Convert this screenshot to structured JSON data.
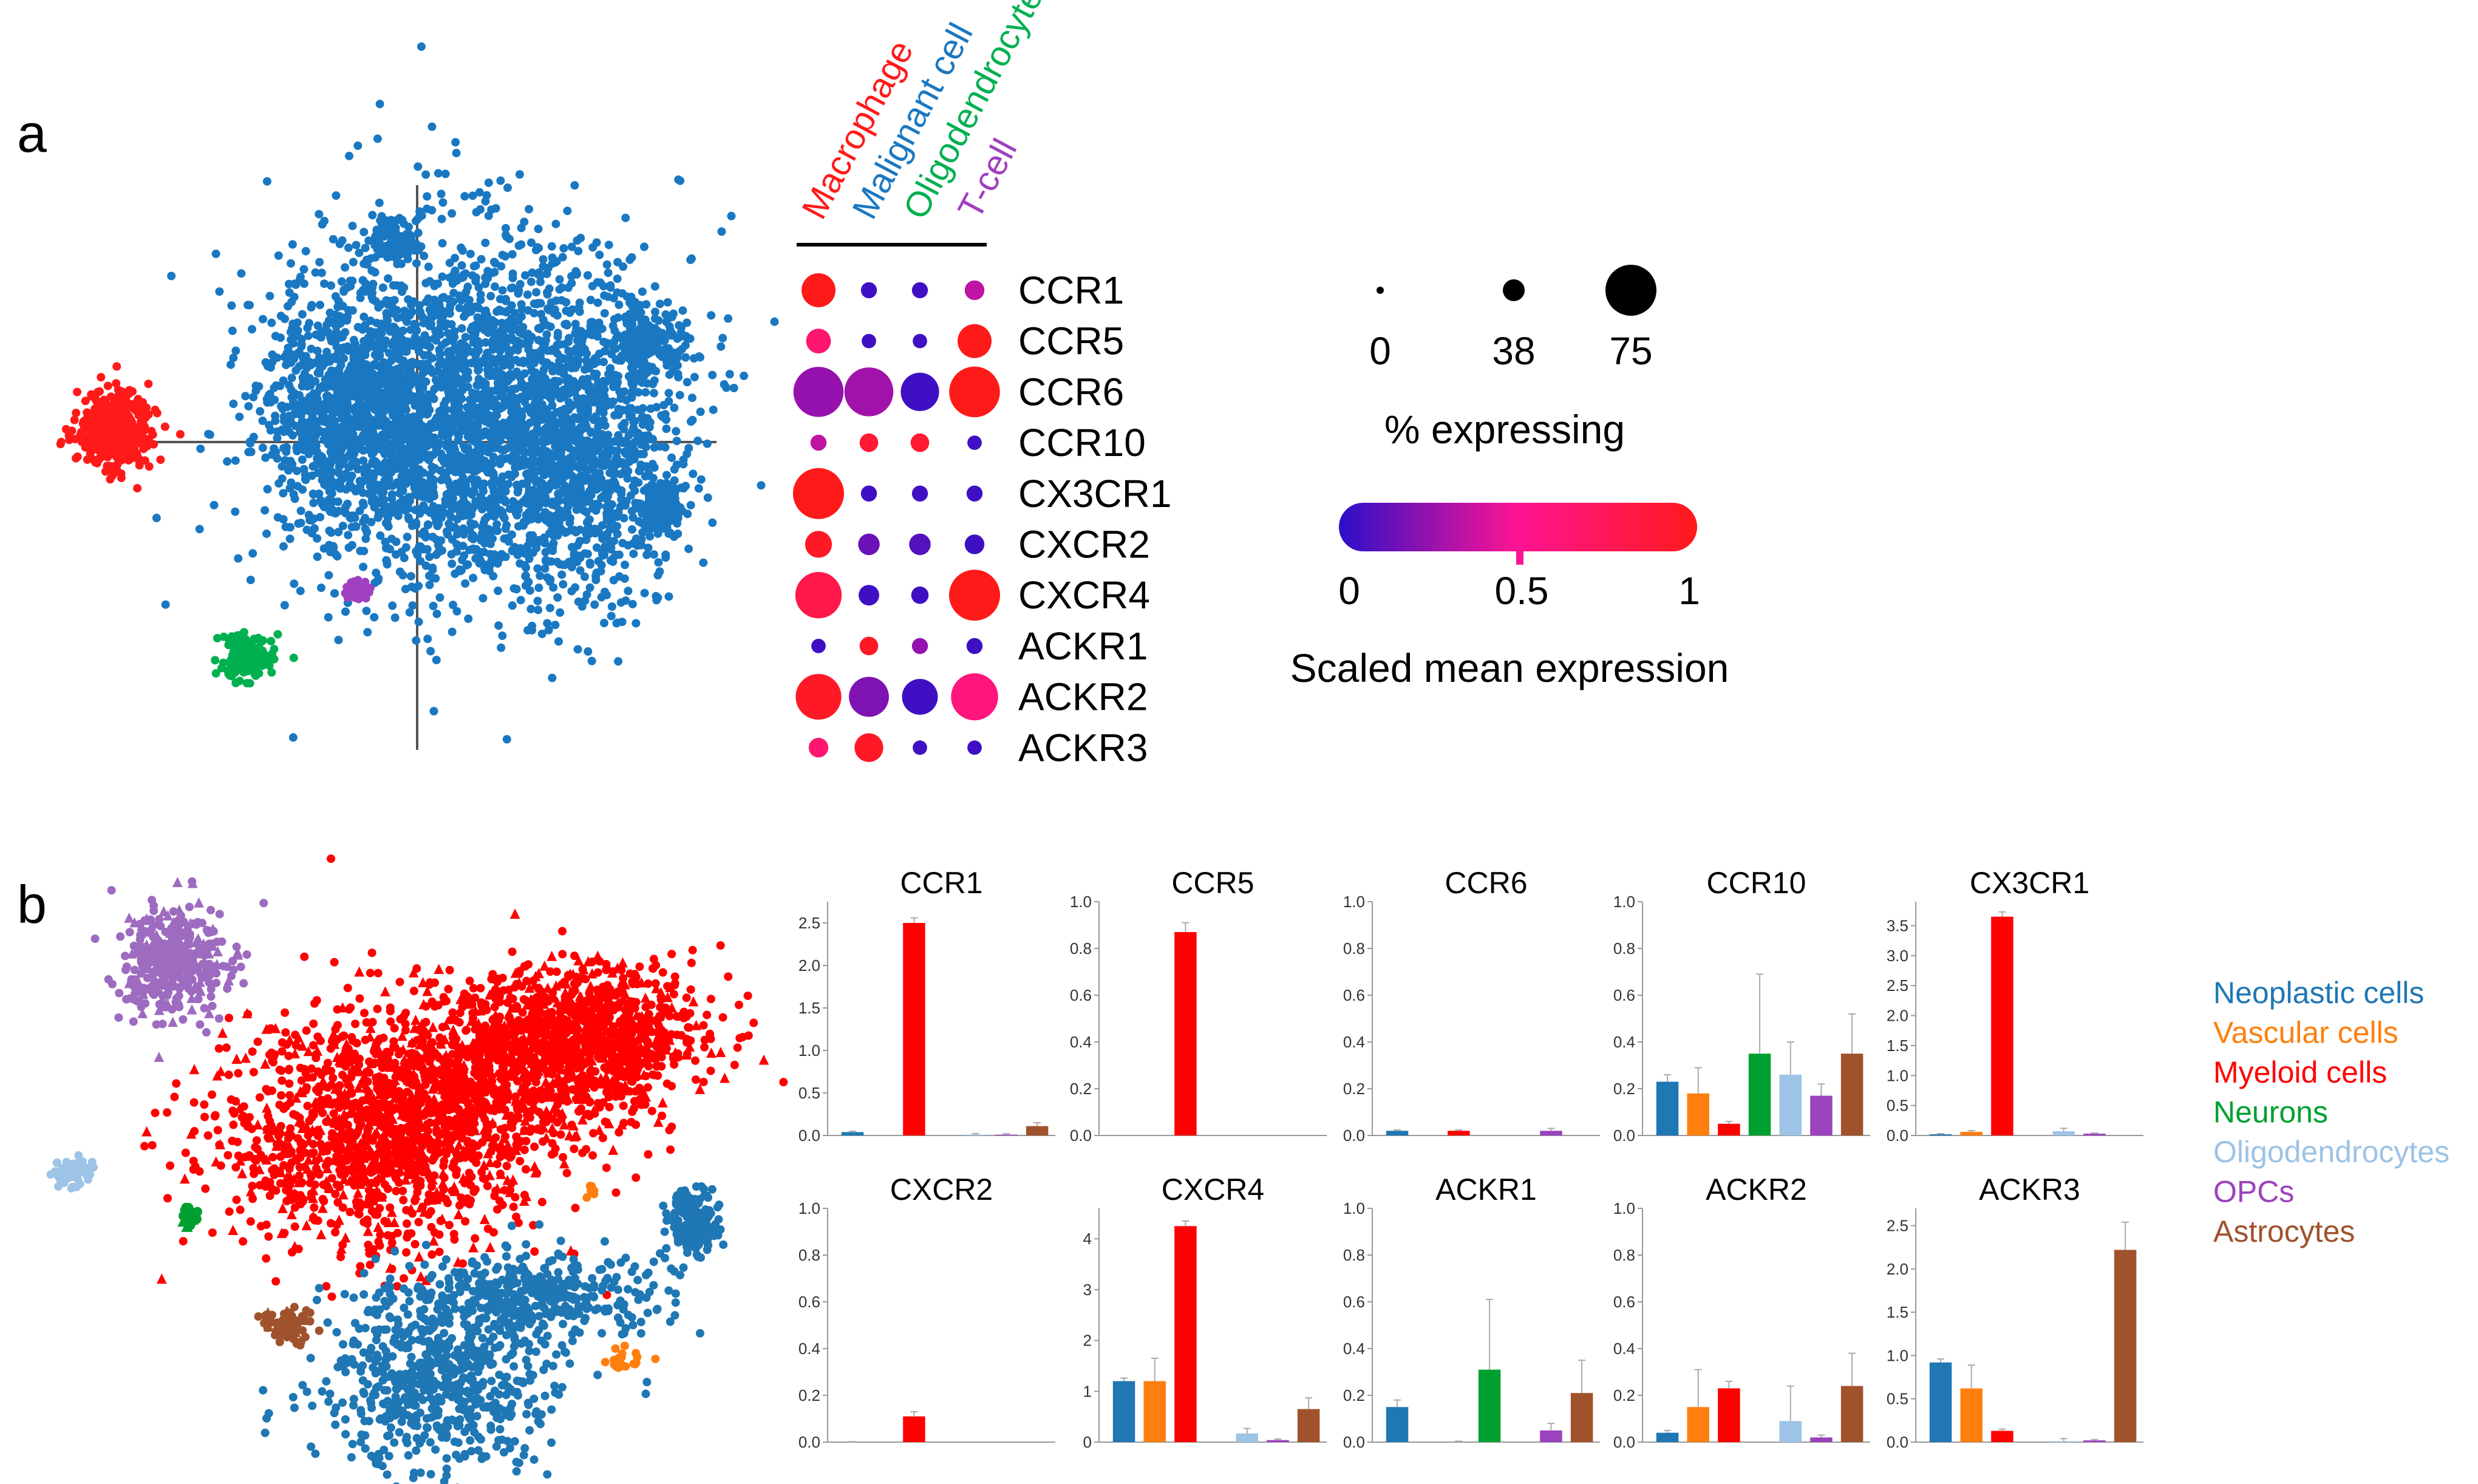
{
  "panel_labels": {
    "a": "a",
    "b": "b"
  },
  "colors": {
    "macrophage": "#ff1a1a",
    "malignant": "#1a78c2",
    "oligodendrocyte": "#00b050",
    "tcell": "#a040c0",
    "neoplastic": "#1f77b4",
    "vascular": "#ff7f0e",
    "myeloid": "#ff0000",
    "neurons": "#00a030",
    "oligodendrocytes": "#9dc3e6",
    "opcs": "#9b42bd",
    "astrocytes": "#a0522d",
    "tsne_purple": "#9d6bbf",
    "axis": "#555555"
  },
  "dotplot": {
    "cell_types": [
      {
        "label": "Macrophage",
        "color": "#ff1a1a"
      },
      {
        "label": "Malignant cell",
        "color": "#1a78c2"
      },
      {
        "label": "Oligodendrocyte",
        "color": "#00b050"
      },
      {
        "label": "T-cell",
        "color": "#a040c0"
      }
    ],
    "genes": [
      "CCR1",
      "CCR5",
      "CCR6",
      "CCR10",
      "CX3CR1",
      "CXCR2",
      "CXCR4",
      "ACKR1",
      "ACKR2",
      "ACKR3"
    ],
    "pct_expressing": [
      [
        28,
        3,
        3,
        6
      ],
      [
        12,
        2,
        2,
        28
      ],
      [
        72,
        68,
        38,
        74
      ],
      [
        3,
        5,
        5,
        2
      ],
      [
        75,
        3,
        3,
        3
      ],
      [
        15,
        8,
        8,
        6
      ],
      [
        60,
        7,
        4,
        75
      ],
      [
        2,
        5,
        3,
        3
      ],
      [
        58,
        42,
        32,
        62
      ],
      [
        6,
        18,
        2,
        2
      ]
    ],
    "scaled_mean": [
      [
        1.0,
        0.05,
        0.05,
        0.35
      ],
      [
        0.65,
        0.05,
        0.05,
        1.0
      ],
      [
        0.25,
        0.28,
        0.05,
        1.0
      ],
      [
        0.35,
        0.9,
        0.9,
        0.05
      ],
      [
        1.0,
        0.05,
        0.05,
        0.05
      ],
      [
        0.95,
        0.15,
        0.1,
        0.05
      ],
      [
        0.8,
        0.05,
        0.05,
        1.0
      ],
      [
        0.05,
        0.95,
        0.25,
        0.05
      ],
      [
        0.95,
        0.2,
        0.05,
        0.6
      ],
      [
        0.65,
        0.95,
        0.05,
        0.05
      ]
    ],
    "size_legend": {
      "values": [
        "0",
        "38",
        "75"
      ],
      "title": "% expressing"
    },
    "color_legend": {
      "ticks": [
        "0",
        "0.5",
        "1"
      ],
      "title": "Scaled mean expression"
    }
  },
  "legend_b": [
    {
      "label": "Neoplastic cells",
      "color": "#1f77b4"
    },
    {
      "label": "Vascular cells",
      "color": "#ff7f0e"
    },
    {
      "label": "Myeloid cells",
      "color": "#ff0000"
    },
    {
      "label": "Neurons",
      "color": "#00a030"
    },
    {
      "label": "Oligodendrocytes",
      "color": "#9dc3e6"
    },
    {
      "label": "OPCs",
      "color": "#9b42bd"
    },
    {
      "label": "Astrocytes",
      "color": "#a0522d"
    }
  ],
  "chart_data": [
    {
      "type": "bar",
      "title": "CCR1",
      "categories": [
        "Neoplastic cells",
        "Vascular cells",
        "Myeloid cells",
        "Neurons",
        "Oligodendrocytes",
        "OPCs",
        "Astrocytes"
      ],
      "values": [
        0.04,
        0.0,
        2.5,
        0.0,
        0.01,
        0.01,
        0.11
      ],
      "errors": [
        0.01,
        0.0,
        0.06,
        0.0,
        0.01,
        0.01,
        0.04
      ],
      "ylim": [
        0,
        2.75
      ],
      "yticks": [
        "0.0",
        "0.5",
        "1.0",
        "1.5",
        "2.0",
        "2.5"
      ],
      "tick_values": [
        0,
        0.5,
        1,
        1.5,
        2,
        2.5
      ]
    },
    {
      "type": "bar",
      "title": "CCR5",
      "categories": [
        "Neoplastic cells",
        "Vascular cells",
        "Myeloid cells",
        "Neurons",
        "Oligodendrocytes",
        "OPCs",
        "Astrocytes"
      ],
      "values": [
        0.0,
        0.0,
        0.87,
        0.0,
        0.0,
        0.0,
        0.0
      ],
      "errors": [
        0,
        0,
        0.04,
        0,
        0,
        0,
        0
      ],
      "ylim": [
        0,
        1.0
      ],
      "yticks": [
        "0.0",
        "0.2",
        "0.4",
        "0.6",
        "0.8",
        "1.0"
      ],
      "tick_values": [
        0,
        0.2,
        0.4,
        0.6,
        0.8,
        1.0
      ]
    },
    {
      "type": "bar",
      "title": "CCR6",
      "categories": [
        "Neoplastic cells",
        "Vascular cells",
        "Myeloid cells",
        "Neurons",
        "Oligodendrocytes",
        "OPCs",
        "Astrocytes"
      ],
      "values": [
        0.02,
        0.0,
        0.02,
        0.0,
        0.0,
        0.02,
        0.0
      ],
      "errors": [
        0.004,
        0,
        0.004,
        0,
        0,
        0.01,
        0
      ],
      "ylim": [
        0,
        1.0
      ],
      "yticks": [
        "0.0",
        "0.2",
        "0.4",
        "0.6",
        "0.8",
        "1.0"
      ],
      "tick_values": [
        0,
        0.2,
        0.4,
        0.6,
        0.8,
        1.0
      ]
    },
    {
      "type": "bar",
      "title": "CCR10",
      "categories": [
        "Neoplastic cells",
        "Vascular cells",
        "Myeloid cells",
        "Neurons",
        "Oligodendrocytes",
        "OPCs",
        "Astrocytes"
      ],
      "values": [
        0.23,
        0.18,
        0.05,
        0.35,
        0.26,
        0.17,
        0.35
      ],
      "errors": [
        0.03,
        0.11,
        0.01,
        0.34,
        0.14,
        0.05,
        0.17
      ],
      "ylim": [
        0,
        1.0
      ],
      "yticks": [
        "0.0",
        "0.2",
        "0.4",
        "0.6",
        "0.8",
        "1.0"
      ],
      "tick_values": [
        0,
        0.2,
        0.4,
        0.6,
        0.8,
        1.0
      ]
    },
    {
      "type": "bar",
      "title": "CX3CR1",
      "categories": [
        "Neoplastic cells",
        "Vascular cells",
        "Myeloid cells",
        "Neurons",
        "Oligodendrocytes",
        "OPCs",
        "Astrocytes"
      ],
      "values": [
        0.02,
        0.06,
        3.65,
        0.0,
        0.07,
        0.03,
        0.0
      ],
      "errors": [
        0.01,
        0.02,
        0.08,
        0,
        0.05,
        0.01,
        0
      ],
      "ylim": [
        0,
        3.9
      ],
      "yticks": [
        "0.0",
        "0.5",
        "1.0",
        "1.5",
        "2.0",
        "2.5",
        "3.0",
        "3.5"
      ],
      "tick_values": [
        0,
        0.5,
        1,
        1.5,
        2,
        2.5,
        3,
        3.5
      ]
    },
    {
      "type": "bar",
      "title": "CXCR2",
      "categories": [
        "Neoplastic cells",
        "Vascular cells",
        "Myeloid cells",
        "Neurons",
        "Oligodendrocytes",
        "OPCs",
        "Astrocytes"
      ],
      "values": [
        0.0,
        0.0,
        0.11,
        0.0,
        0.0,
        0.0,
        0.0
      ],
      "errors": [
        0.002,
        0,
        0.02,
        0,
        0,
        0,
        0
      ],
      "ylim": [
        0,
        1.0
      ],
      "yticks": [
        "0.0",
        "0.2",
        "0.4",
        "0.6",
        "0.8",
        "1.0"
      ],
      "tick_values": [
        0,
        0.2,
        0.4,
        0.6,
        0.8,
        1.0
      ]
    },
    {
      "type": "bar",
      "title": "CXCR4",
      "categories": [
        "Neoplastic cells",
        "Vascular cells",
        "Myeloid cells",
        "Neurons",
        "Oligodendrocytes",
        "OPCs",
        "Astrocytes"
      ],
      "values": [
        1.2,
        1.2,
        4.25,
        0.0,
        0.17,
        0.04,
        0.65
      ],
      "errors": [
        0.06,
        0.45,
        0.1,
        0,
        0.1,
        0.02,
        0.22
      ],
      "ylim": [
        0,
        4.6
      ],
      "yticks": [
        "0",
        "1",
        "2",
        "3",
        "4"
      ],
      "tick_values": [
        0,
        1,
        2,
        3,
        4
      ]
    },
    {
      "type": "bar",
      "title": "ACKR1",
      "categories": [
        "Neoplastic cells",
        "Vascular cells",
        "Myeloid cells",
        "Neurons",
        "Oligodendrocytes",
        "OPCs",
        "Astrocytes"
      ],
      "values": [
        0.15,
        0.0,
        0.0,
        0.31,
        0.0,
        0.05,
        0.21
      ],
      "errors": [
        0.03,
        0,
        0.004,
        0.3,
        0,
        0.03,
        0.14
      ],
      "ylim": [
        0,
        1.0
      ],
      "yticks": [
        "0.0",
        "0.2",
        "0.4",
        "0.6",
        "0.8",
        "1.0"
      ],
      "tick_values": [
        0,
        0.2,
        0.4,
        0.6,
        0.8,
        1.0
      ]
    },
    {
      "type": "bar",
      "title": "ACKR2",
      "categories": [
        "Neoplastic cells",
        "Vascular cells",
        "Myeloid cells",
        "Neurons",
        "Oligodendrocytes",
        "OPCs",
        "Astrocytes"
      ],
      "values": [
        0.04,
        0.15,
        0.23,
        0.0,
        0.09,
        0.02,
        0.24
      ],
      "errors": [
        0.01,
        0.16,
        0.03,
        0,
        0.15,
        0.01,
        0.14
      ],
      "ylim": [
        0,
        1.0
      ],
      "yticks": [
        "0.0",
        "0.2",
        "0.4",
        "0.6",
        "0.8",
        "1.0"
      ],
      "tick_values": [
        0,
        0.2,
        0.4,
        0.6,
        0.8,
        1.0
      ]
    },
    {
      "type": "bar",
      "title": "ACKR3",
      "categories": [
        "Neoplastic cells",
        "Vascular cells",
        "Myeloid cells",
        "Neurons",
        "Oligodendrocytes",
        "OPCs",
        "Astrocytes"
      ],
      "values": [
        0.92,
        0.62,
        0.13,
        0.0,
        0.01,
        0.02,
        2.22
      ],
      "errors": [
        0.04,
        0.27,
        0.02,
        0,
        0.03,
        0.01,
        0.32
      ],
      "ylim": [
        0,
        2.7
      ],
      "yticks": [
        "0.0",
        "0.5",
        "1.0",
        "1.5",
        "2.0",
        "2.5"
      ],
      "tick_values": [
        0,
        0.5,
        1,
        1.5,
        2,
        2.5
      ]
    }
  ]
}
